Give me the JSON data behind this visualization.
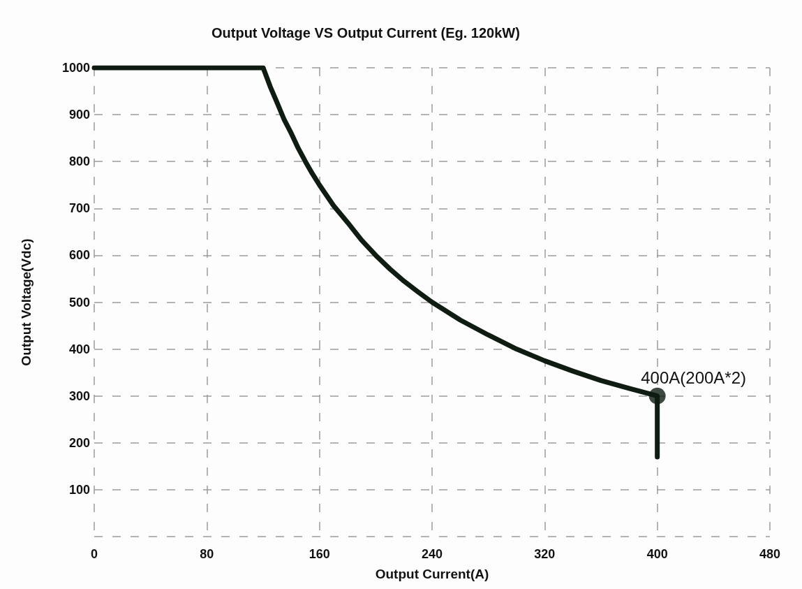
{
  "chart_data": {
    "type": "line",
    "title": "Output Voltage VS Output Current (Eg. 120kW)",
    "xlabel": "Output Current(A)",
    "ylabel": "Output Voltage(Vdc)",
    "series": [
      {
        "color": "#0e1c12",
        "x": [
          0,
          120,
          125,
          130,
          135,
          140,
          145,
          150,
          155,
          160,
          170,
          180,
          190,
          200,
          210,
          220,
          230,
          240,
          260,
          280,
          300,
          320,
          340,
          360,
          380,
          400,
          400
        ],
        "values": [
          1000,
          1000,
          960,
          925,
          889,
          860,
          828,
          800,
          774,
          750,
          706,
          670,
          632,
          600,
          571,
          545,
          522,
          500,
          462,
          430,
          400,
          375,
          353,
          333,
          316,
          300,
          170
        ]
      },
      {
        "type": "scatter",
        "marker": "circle",
        "color": "#0e1c12",
        "x": [
          400
        ],
        "values": [
          300
        ]
      }
    ],
    "xlim": [
      0,
      480
    ],
    "xticks": [
      0,
      80,
      160,
      240,
      320,
      400,
      480
    ],
    "ylim": [
      0,
      1000
    ],
    "yticks": [
      {
        "value": 0,
        "label": null
      },
      100,
      200,
      300,
      400,
      500,
      600,
      700,
      800,
      900,
      1000
    ],
    "grid": true,
    "line_style": "solid",
    "annotations": [
      {
        "text": "400A(200A*2)",
        "x": 400,
        "y": 300
      }
    ]
  }
}
